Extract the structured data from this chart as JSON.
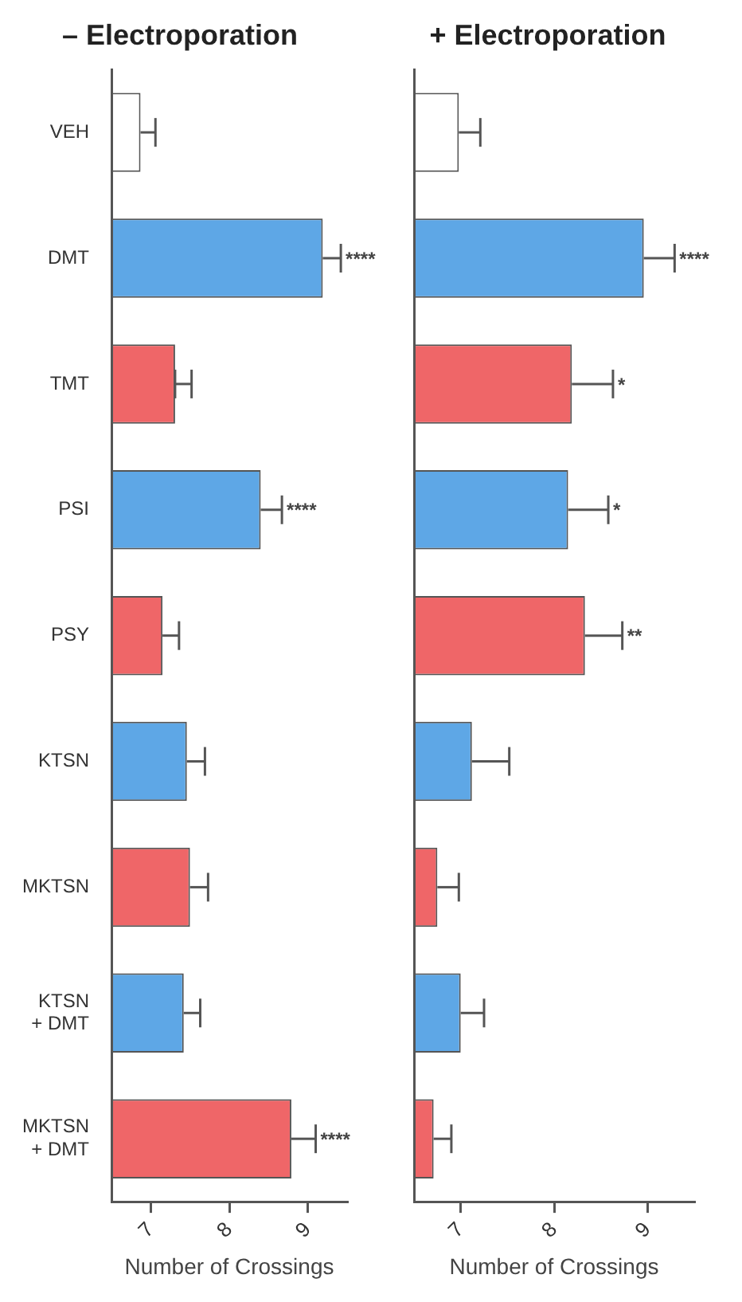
{
  "chart_data": [
    {
      "type": "bar",
      "orientation": "horizontal",
      "title": "– Electroporation",
      "xlabel": "Number of Crossings",
      "categories": [
        "VEH",
        "DMT",
        "TMT",
        "PSI",
        "PSY",
        "KTSN",
        "MKTSN",
        "KTSN + DMT",
        "MKTSN + DMT"
      ],
      "base": [
        6.5,
        6.5,
        6.5,
        6.5,
        6.5,
        6.5,
        6.5,
        6.5,
        6.5
      ],
      "values": [
        0.37,
        2.69,
        0.81,
        1.9,
        0.65,
        0.96,
        1.0,
        0.92,
        2.29
      ],
      "colors": [
        "#ffffff",
        "#5ea7e6",
        "#ef6668",
        "#5ea7e6",
        "#ef6668",
        "#5ea7e6",
        "#ef6668",
        "#5ea7e6",
        "#ef6668"
      ],
      "errors": [
        [
          6.87,
          7.06
        ],
        [
          9.19,
          9.42
        ],
        [
          7.31,
          7.52
        ],
        [
          8.4,
          8.67
        ],
        [
          7.15,
          7.36
        ],
        [
          7.46,
          7.69
        ],
        [
          7.5,
          7.73
        ],
        [
          7.42,
          7.63
        ],
        [
          8.79,
          9.1
        ]
      ],
      "xlim": [
        6.5,
        9.5
      ],
      "xticks": [
        7,
        8,
        9
      ],
      "annotations": [
        {
          "text": "****",
          "x": 9.42,
          "y": "DMT"
        },
        {
          "text": "****",
          "x": 8.67,
          "y": "PSI"
        },
        {
          "text": "****",
          "x": 9.1,
          "y": "MKTSN + DMT"
        }
      ]
    },
    {
      "type": "bar",
      "orientation": "horizontal",
      "title": "+ Electroporation",
      "xlabel": "Number of Crossings",
      "categories": [
        "VEH",
        "DMT",
        "TMT",
        "PSI",
        "PSY",
        "KTSN",
        "MKTSN",
        "KTSN + DMT",
        "MKTSN + DMT"
      ],
      "base": [
        6.5,
        6.5,
        6.5,
        6.5,
        6.5,
        6.5,
        6.5,
        6.5,
        6.5
      ],
      "values": [
        0.48,
        2.46,
        1.69,
        1.65,
        1.83,
        0.62,
        0.25,
        0.5,
        0.21
      ],
      "colors": [
        "#ffffff",
        "#5ea7e6",
        "#ef6668",
        "#5ea7e6",
        "#ef6668",
        "#5ea7e6",
        "#ef6668",
        "#5ea7e6",
        "#ef6668"
      ],
      "errors": [
        [
          6.98,
          7.21
        ],
        [
          8.96,
          9.29
        ],
        [
          8.19,
          8.63
        ],
        [
          8.15,
          8.58
        ],
        [
          8.33,
          8.73
        ],
        [
          7.12,
          7.52
        ],
        [
          6.75,
          6.98
        ],
        [
          7.0,
          7.25
        ],
        [
          6.71,
          6.9
        ]
      ],
      "xlim": [
        6.5,
        9.5
      ],
      "xticks": [
        7,
        8,
        9
      ],
      "tick_labels": "x",
      "annotations": [
        {
          "text": "****",
          "x": 9.29,
          "y": "DMT"
        },
        {
          "text": "*",
          "x": 8.63,
          "y": "TMT"
        },
        {
          "text": "*",
          "x": 8.58,
          "y": "PSI"
        },
        {
          "text": "**",
          "x": 8.73,
          "y": "PSY"
        }
      ]
    }
  ]
}
